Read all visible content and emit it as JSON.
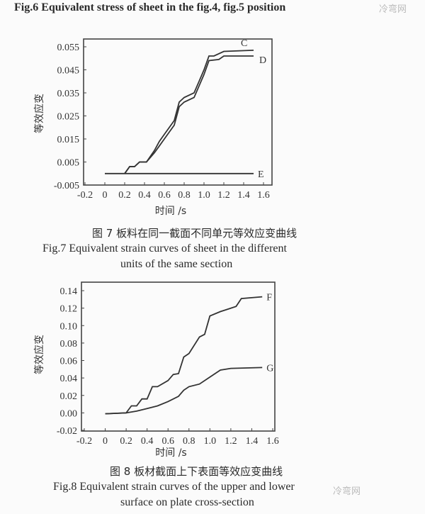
{
  "header": {
    "title": "Fig.6  Equivalent stress of sheet in the fig.4, fig.5 position",
    "watermark": "冷弯网"
  },
  "captions": {
    "fig7_cn": "图 7  板料在同一截面不同单元等效应变曲线",
    "fig7_en1": "Fig.7  Equivalent strain curves of sheet in the different",
    "fig7_en2": "units of the same section",
    "fig8_cn": "图 8  板材截面上下表面等效应变曲线",
    "fig8_en1": "Fig.8  Equivalent strain curves of the upper and lower",
    "fig8_en2": "surface on plate cross-section",
    "watermark2": "冷弯网"
  },
  "chart_data": [
    {
      "type": "line",
      "title": "",
      "xlabel": "时间 /s",
      "ylabel": "等效应变",
      "xlim": [
        -0.2,
        1.6
      ],
      "ylim": [
        -0.005,
        0.055
      ],
      "xticks": [
        "-0.2",
        "0",
        "0.2",
        "0.4",
        "0.6",
        "0.8",
        "1.0",
        "1.2",
        "1.4",
        "1.6"
      ],
      "yticks": [
        "0.055",
        "0.045",
        "0.035",
        "0.025",
        "0.015",
        "0.005",
        "-0.005"
      ],
      "series": [
        {
          "name": "C",
          "x": [
            0.2,
            0.25,
            0.3,
            0.35,
            0.42,
            0.5,
            0.55,
            0.6,
            0.7,
            0.75,
            0.8,
            0.9,
            0.95,
            1.0,
            1.05,
            1.1,
            1.2,
            1.5
          ],
          "y": [
            0,
            0.003,
            0.003,
            0.005,
            0.005,
            0.01,
            0.014,
            0.017,
            0.023,
            0.031,
            0.033,
            0.035,
            0.04,
            0.045,
            0.051,
            0.051,
            0.053,
            0.0535
          ]
        },
        {
          "name": "D",
          "x": [
            0.2,
            0.25,
            0.3,
            0.35,
            0.42,
            0.5,
            0.55,
            0.6,
            0.7,
            0.75,
            0.8,
            0.9,
            0.95,
            1.0,
            1.05,
            1.15,
            1.2,
            1.5
          ],
          "y": [
            0,
            0.003,
            0.003,
            0.005,
            0.005,
            0.009,
            0.012,
            0.015,
            0.021,
            0.029,
            0.031,
            0.033,
            0.038,
            0.043,
            0.049,
            0.0495,
            0.051,
            0.051
          ]
        },
        {
          "name": "E",
          "x": [
            0,
            1.5
          ],
          "y": [
            0,
            0
          ]
        }
      ]
    },
    {
      "type": "line",
      "title": "",
      "xlabel": "时间 /s",
      "ylabel": "等效应变",
      "xlim": [
        -0.2,
        1.6
      ],
      "ylim": [
        -0.02,
        0.14
      ],
      "xticks": [
        "-0.2",
        "0",
        "0.2",
        "0.4",
        "0.6",
        "0.8",
        "1.0",
        "1.2",
        "1.4",
        "1.6"
      ],
      "yticks": [
        "0.14",
        "0.12",
        "0.10",
        "0.08",
        "0.06",
        "0.04",
        "0.02",
        "0.00",
        "-0.02"
      ],
      "series": [
        {
          "name": "F",
          "x": [
            0,
            0.2,
            0.25,
            0.3,
            0.35,
            0.4,
            0.45,
            0.5,
            0.6,
            0.65,
            0.7,
            0.75,
            0.8,
            0.9,
            0.95,
            1.0,
            1.1,
            1.15,
            1.25,
            1.3,
            1.5
          ],
          "y": [
            -0.001,
            0,
            0.008,
            0.008,
            0.016,
            0.016,
            0.03,
            0.03,
            0.037,
            0.044,
            0.045,
            0.064,
            0.068,
            0.087,
            0.09,
            0.111,
            0.116,
            0.118,
            0.122,
            0.131,
            0.133
          ]
        },
        {
          "name": "G",
          "x": [
            0,
            0.2,
            0.3,
            0.4,
            0.5,
            0.6,
            0.7,
            0.75,
            0.8,
            0.9,
            1.0,
            1.1,
            1.2,
            1.5
          ],
          "y": [
            -0.001,
            0,
            0.002,
            0.005,
            0.008,
            0.013,
            0.019,
            0.026,
            0.03,
            0.033,
            0.041,
            0.049,
            0.051,
            0.052
          ]
        }
      ]
    }
  ]
}
